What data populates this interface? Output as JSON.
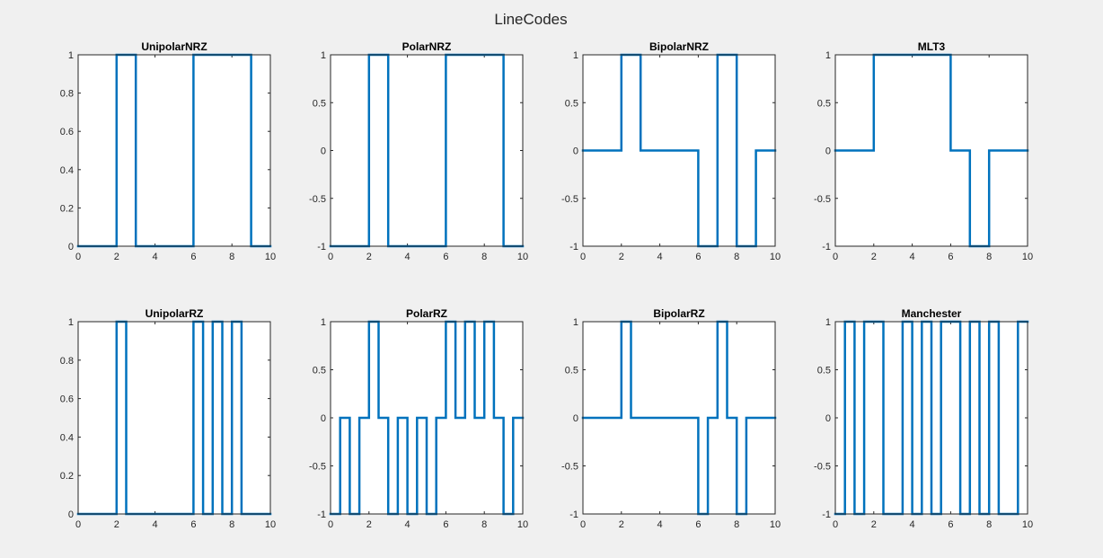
{
  "figure": {
    "title": "LineCodes"
  },
  "chart_data": [
    {
      "type": "line",
      "title": "UnipolarNRZ",
      "xlim": [
        0,
        10
      ],
      "ylim": [
        0,
        1
      ],
      "xticks": [
        0,
        2,
        4,
        6,
        8,
        10
      ],
      "yticks": [
        0,
        0.2,
        0.4,
        0.6,
        0.8,
        1
      ],
      "color": "#0072bd",
      "step": {
        "t": [
          0,
          1,
          2,
          3,
          4,
          5,
          6,
          7,
          8,
          9,
          10
        ],
        "levels": [
          0,
          0,
          1,
          0,
          0,
          0,
          1,
          1,
          1,
          0
        ]
      }
    },
    {
      "type": "line",
      "title": "PolarNRZ",
      "xlim": [
        0,
        10
      ],
      "ylim": [
        -1,
        1
      ],
      "xticks": [
        0,
        2,
        4,
        6,
        8,
        10
      ],
      "yticks": [
        -1,
        -0.5,
        0,
        0.5,
        1
      ],
      "color": "#0072bd",
      "step": {
        "t": [
          0,
          1,
          2,
          3,
          4,
          5,
          6,
          7,
          8,
          9,
          10
        ],
        "levels": [
          -1,
          -1,
          1,
          -1,
          -1,
          -1,
          1,
          1,
          1,
          -1
        ]
      }
    },
    {
      "type": "line",
      "title": "BipolarNRZ",
      "xlim": [
        0,
        10
      ],
      "ylim": [
        -1,
        1
      ],
      "xticks": [
        0,
        2,
        4,
        6,
        8,
        10
      ],
      "yticks": [
        -1,
        -0.5,
        0,
        0.5,
        1
      ],
      "color": "#0072bd",
      "step": {
        "t": [
          0,
          1,
          2,
          3,
          4,
          5,
          6,
          7,
          8,
          9,
          10
        ],
        "levels": [
          0,
          0,
          1,
          0,
          0,
          0,
          -1,
          1,
          -1,
          0
        ]
      }
    },
    {
      "type": "line",
      "title": "MLT3",
      "xlim": [
        0,
        10
      ],
      "ylim": [
        -1,
        1
      ],
      "xticks": [
        0,
        2,
        4,
        6,
        8,
        10
      ],
      "yticks": [
        -1,
        -0.5,
        0,
        0.5,
        1
      ],
      "color": "#0072bd",
      "step": {
        "t": [
          0,
          1,
          2,
          3,
          4,
          5,
          6,
          7,
          8,
          9,
          10
        ],
        "levels": [
          0,
          0,
          1,
          1,
          1,
          1,
          0,
          -1,
          0,
          0
        ]
      }
    },
    {
      "type": "line",
      "title": "UnipolarRZ",
      "xlim": [
        0,
        10
      ],
      "ylim": [
        0,
        1
      ],
      "xticks": [
        0,
        2,
        4,
        6,
        8,
        10
      ],
      "yticks": [
        0,
        0.2,
        0.4,
        0.6,
        0.8,
        1
      ],
      "color": "#0072bd",
      "step": {
        "t": [
          0,
          0.5,
          1,
          1.5,
          2,
          2.5,
          3,
          3.5,
          4,
          4.5,
          5,
          5.5,
          6,
          6.5,
          7,
          7.5,
          8,
          8.5,
          9,
          9.5,
          10
        ],
        "levels": [
          0,
          0,
          0,
          0,
          1,
          0,
          0,
          0,
          0,
          0,
          0,
          0,
          1,
          0,
          1,
          0,
          1,
          0,
          0,
          0
        ]
      }
    },
    {
      "type": "line",
      "title": "PolarRZ",
      "xlim": [
        0,
        10
      ],
      "ylim": [
        -1,
        1
      ],
      "xticks": [
        0,
        2,
        4,
        6,
        8,
        10
      ],
      "yticks": [
        -1,
        -0.5,
        0,
        0.5,
        1
      ],
      "color": "#0072bd",
      "step": {
        "t": [
          0,
          0.5,
          1,
          1.5,
          2,
          2.5,
          3,
          3.5,
          4,
          4.5,
          5,
          5.5,
          6,
          6.5,
          7,
          7.5,
          8,
          8.5,
          9,
          9.5,
          10
        ],
        "levels": [
          -1,
          0,
          -1,
          0,
          1,
          0,
          -1,
          0,
          -1,
          0,
          -1,
          0,
          1,
          0,
          1,
          0,
          1,
          0,
          -1,
          0
        ]
      }
    },
    {
      "type": "line",
      "title": "BipolarRZ",
      "xlim": [
        0,
        10
      ],
      "ylim": [
        -1,
        1
      ],
      "xticks": [
        0,
        2,
        4,
        6,
        8,
        10
      ],
      "yticks": [
        -1,
        -0.5,
        0,
        0.5,
        1
      ],
      "color": "#0072bd",
      "step": {
        "t": [
          0,
          0.5,
          1,
          1.5,
          2,
          2.5,
          3,
          3.5,
          4,
          4.5,
          5,
          5.5,
          6,
          6.5,
          7,
          7.5,
          8,
          8.5,
          9,
          9.5,
          10
        ],
        "levels": [
          0,
          0,
          0,
          0,
          1,
          0,
          0,
          0,
          0,
          0,
          0,
          0,
          -1,
          0,
          1,
          0,
          -1,
          0,
          0,
          0
        ]
      }
    },
    {
      "type": "line",
      "title": "Manchester",
      "xlim": [
        0,
        10
      ],
      "ylim": [
        -1,
        1
      ],
      "xticks": [
        0,
        2,
        4,
        6,
        8,
        10
      ],
      "yticks": [
        -1,
        -0.5,
        0,
        0.5,
        1
      ],
      "color": "#0072bd",
      "step": {
        "t": [
          0,
          0.5,
          1,
          1.5,
          2,
          2.5,
          3,
          3.5,
          4,
          4.5,
          5,
          5.5,
          6,
          6.5,
          7,
          7.5,
          8,
          8.5,
          9,
          9.5,
          10
        ],
        "levels": [
          -1,
          1,
          -1,
          1,
          1,
          -1,
          -1,
          1,
          -1,
          1,
          -1,
          1,
          1,
          -1,
          1,
          -1,
          1,
          -1,
          -1,
          1
        ]
      }
    }
  ]
}
